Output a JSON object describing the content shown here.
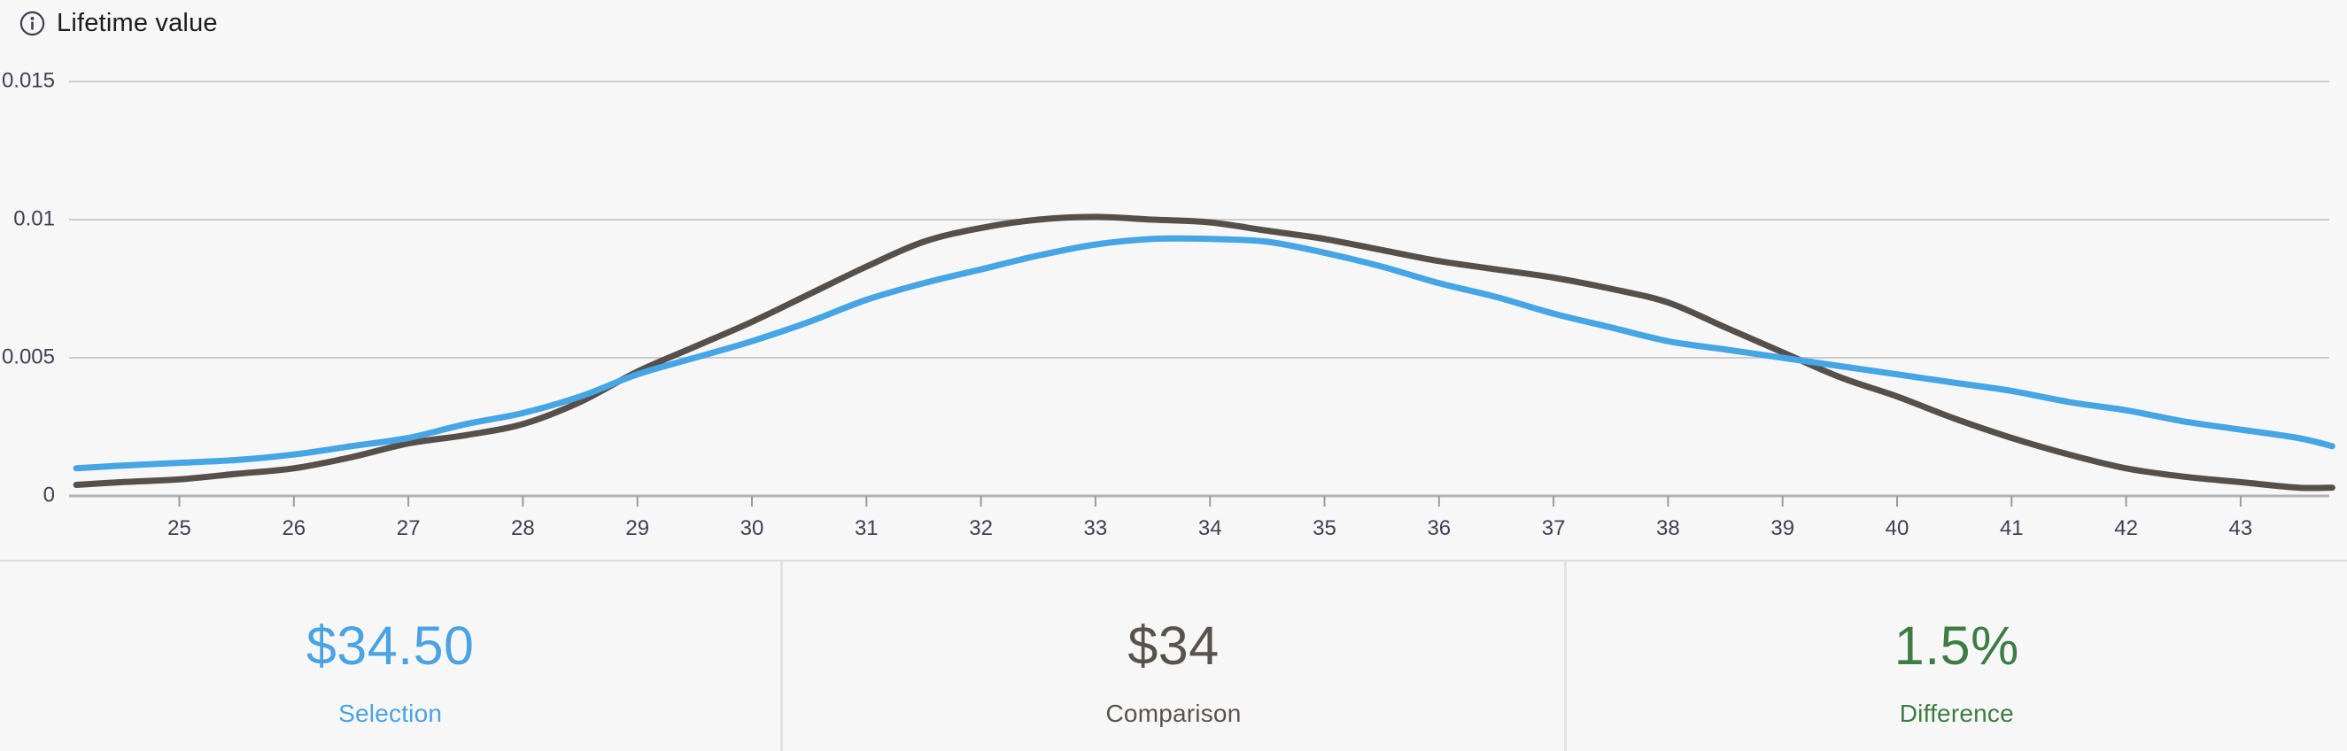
{
  "header": {
    "title": "Lifetime value",
    "info_icon": "info-circle-icon"
  },
  "colors": {
    "background": "#f7f7f8",
    "grid_line": "#cccccc",
    "axis_line": "#b3b3b3",
    "tick_mark": "#9b9b9b",
    "tick_label": "#3f3f54",
    "divider": "#e1e3e8",
    "selection_blue": "#45a5e5",
    "comparison_dark": "#57504a",
    "difference_green": "#3e7c45",
    "title_text": "#1d1d1f"
  },
  "chart_data": {
    "type": "line",
    "title": "Lifetime value",
    "xlabel": "",
    "ylabel": "",
    "grid": "horizontal",
    "legend_position": "none",
    "xlim": [
      24.1,
      43.8
    ],
    "ylim": [
      0,
      0.0168
    ],
    "yticks": [
      0,
      0.005,
      0.01,
      0.015
    ],
    "ytick_labels": [
      "0",
      "0.005",
      "0.01",
      "0.015"
    ],
    "xticks": [
      25,
      26,
      27,
      28,
      29,
      30,
      31,
      32,
      33,
      34,
      35,
      36,
      37,
      38,
      39,
      40,
      41,
      42,
      43
    ],
    "x": [
      24.1,
      24.5,
      25,
      25.5,
      26,
      26.5,
      27,
      27.5,
      28,
      28.5,
      29,
      29.5,
      30,
      30.5,
      31,
      31.5,
      32,
      32.5,
      33,
      33.5,
      34,
      34.5,
      35,
      35.5,
      36,
      36.5,
      37,
      37.5,
      38,
      38.5,
      39,
      39.5,
      40,
      40.5,
      41,
      41.5,
      42,
      42.5,
      43,
      43.5,
      43.8
    ],
    "series": [
      {
        "name": "Comparison",
        "color": "#57504a",
        "values": [
          0.0004,
          0.0005,
          0.0006,
          0.0008,
          0.001,
          0.0014,
          0.0019,
          0.0022,
          0.0026,
          0.0034,
          0.0045,
          0.0054,
          0.0063,
          0.0073,
          0.0083,
          0.0092,
          0.0097,
          0.01,
          0.0101,
          0.01,
          0.0099,
          0.0096,
          0.0093,
          0.0089,
          0.0085,
          0.0082,
          0.0079,
          0.0075,
          0.007,
          0.0061,
          0.0052,
          0.0043,
          0.0036,
          0.0028,
          0.0021,
          0.0015,
          0.001,
          0.0007,
          0.0005,
          0.0003,
          0.0003
        ]
      },
      {
        "name": "Selection",
        "color": "#45a5e5",
        "values": [
          0.001,
          0.0011,
          0.0012,
          0.0013,
          0.0015,
          0.0018,
          0.0021,
          0.0026,
          0.003,
          0.0036,
          0.0044,
          0.005,
          0.0056,
          0.0063,
          0.0071,
          0.0077,
          0.0082,
          0.0087,
          0.0091,
          0.0093,
          0.0093,
          0.0092,
          0.0088,
          0.0083,
          0.0077,
          0.0072,
          0.0066,
          0.0061,
          0.0056,
          0.0053,
          0.005,
          0.0047,
          0.0044,
          0.0041,
          0.0038,
          0.0034,
          0.0031,
          0.0027,
          0.0024,
          0.0021,
          0.0018
        ]
      }
    ]
  },
  "stats": [
    {
      "value": "$34.50",
      "label": "Selection",
      "color": "#4aa3e2"
    },
    {
      "value": "$34",
      "label": "Comparison",
      "color": "#5a534c"
    },
    {
      "value": "1.5%",
      "label": "Difference",
      "color": "#3e7c45"
    }
  ]
}
